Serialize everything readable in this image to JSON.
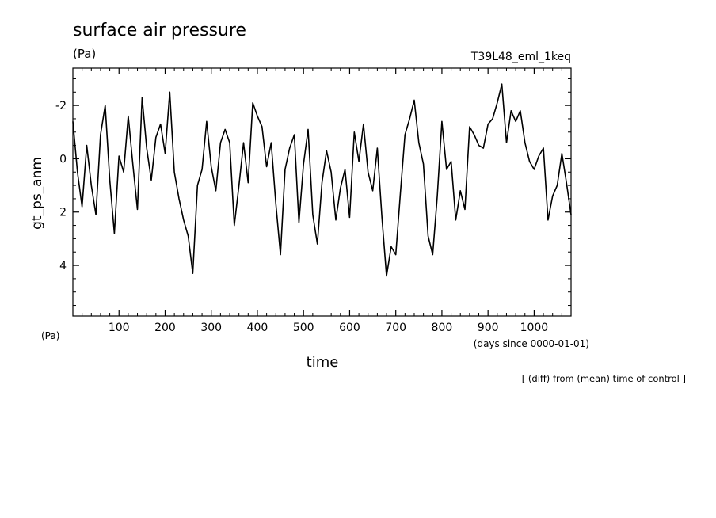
{
  "chart_data": {
    "type": "line",
    "title": "surface air pressure",
    "units": "(Pa)",
    "experiment": "T39L48_eml_1keq",
    "ylabel": "gt_ps_anm",
    "ylabel_units": "(Pa)",
    "xlabel": "time",
    "xlabel_units": "(days since 0000-01-01)",
    "footnote": "[ (diff) from (mean) time of control ]",
    "x_ticks": [
      100,
      200,
      300,
      400,
      500,
      600,
      700,
      800,
      900,
      1000
    ],
    "y_ticks": [
      -2,
      0,
      2,
      4
    ],
    "y_reversed": true,
    "xlim": [
      0,
      1080
    ],
    "ylim": [
      -3.4,
      5.9
    ],
    "series": [
      {
        "color": "#000000",
        "x": [
          0,
          10,
          20,
          30,
          40,
          50,
          60,
          70,
          80,
          90,
          100,
          110,
          120,
          130,
          140,
          150,
          160,
          170,
          180,
          190,
          200,
          210,
          220,
          230,
          240,
          250,
          260,
          270,
          280,
          290,
          300,
          310,
          320,
          330,
          340,
          350,
          360,
          370,
          380,
          390,
          400,
          410,
          420,
          430,
          440,
          450,
          460,
          470,
          480,
          490,
          500,
          510,
          520,
          530,
          540,
          550,
          560,
          570,
          580,
          590,
          600,
          610,
          620,
          630,
          640,
          650,
          660,
          670,
          680,
          690,
          700,
          710,
          720,
          730,
          740,
          750,
          760,
          770,
          780,
          790,
          800,
          810,
          820,
          830,
          840,
          850,
          860,
          870,
          880,
          890,
          900,
          910,
          920,
          930,
          940,
          950,
          960,
          970,
          980,
          990,
          1000,
          1010,
          1020,
          1030,
          1040,
          1050,
          1060,
          1070,
          1080
        ],
        "values": [
          -1.4,
          0.5,
          1.8,
          -0.5,
          1.0,
          2.1,
          -0.9,
          -2.0,
          0.8,
          2.8,
          -0.1,
          0.5,
          -1.6,
          0.2,
          1.9,
          -2.3,
          -0.4,
          0.8,
          -0.8,
          -1.3,
          -0.2,
          -2.5,
          0.5,
          1.5,
          2.3,
          2.9,
          4.3,
          1.0,
          0.4,
          -1.4,
          0.3,
          1.2,
          -0.6,
          -1.1,
          -0.6,
          2.5,
          1.0,
          -0.6,
          0.9,
          -2.1,
          -1.6,
          -1.2,
          0.3,
          -0.6,
          1.7,
          3.6,
          0.4,
          -0.4,
          -0.9,
          2.4,
          0.2,
          -1.1,
          2.1,
          3.2,
          0.9,
          -0.3,
          0.5,
          2.3,
          1.1,
          0.4,
          2.2,
          -1.0,
          0.1,
          -1.3,
          0.5,
          1.2,
          -0.4,
          2.2,
          4.4,
          3.3,
          3.6,
          1.3,
          -0.9,
          -1.5,
          -2.2,
          -0.6,
          0.2,
          2.9,
          3.6,
          1.4,
          -1.4,
          0.4,
          0.1,
          2.3,
          1.2,
          1.9,
          -1.2,
          -0.9,
          -0.5,
          -0.4,
          -1.3,
          -1.5,
          -2.1,
          -2.8,
          -0.6,
          -1.8,
          -1.4,
          -1.8,
          -0.6,
          0.1,
          0.4,
          -0.1,
          -0.4,
          2.3,
          1.4,
          1.0,
          -0.2,
          0.9,
          2.1
        ]
      }
    ],
    "grid": false,
    "legend": "none"
  }
}
